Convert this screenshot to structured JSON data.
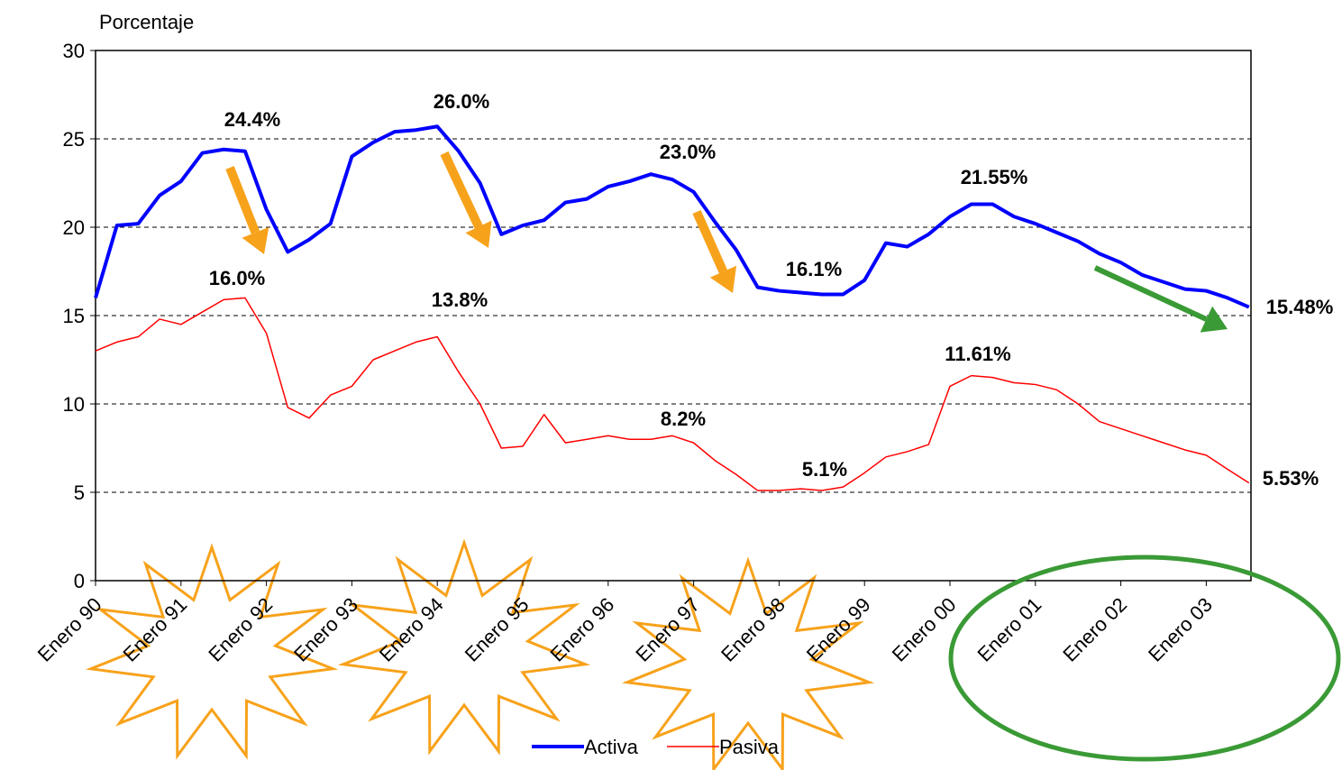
{
  "chart_data": {
    "type": "line",
    "y_label": "Porcentaje",
    "categories": [
      "Enero 90",
      null,
      null,
      null,
      "Enero 91",
      null,
      null,
      null,
      "Enero 92",
      null,
      null,
      null,
      "Enero 93",
      null,
      null,
      null,
      "Enero 94",
      null,
      null,
      null,
      "Enero 95",
      null,
      null,
      null,
      "Enero 96",
      null,
      null,
      null,
      "Enero 97",
      null,
      null,
      null,
      "Enero 98",
      null,
      null,
      null,
      "Enero 99",
      null,
      null,
      null,
      "Enero 00",
      null,
      null,
      null,
      "Enero 01",
      null,
      null,
      null,
      "Enero 02",
      null,
      null,
      null,
      "Enero 03",
      null,
      null
    ],
    "series": [
      {
        "name": "Activa",
        "color": "#0000ff",
        "values": [
          16.0,
          20.1,
          20.2,
          21.8,
          22.6,
          24.2,
          24.4,
          24.3,
          21.0,
          18.6,
          19.3,
          20.2,
          24.0,
          24.8,
          25.4,
          25.5,
          25.7,
          24.3,
          22.5,
          19.6,
          20.1,
          20.4,
          21.4,
          21.6,
          22.3,
          22.6,
          23.0,
          22.7,
          22.0,
          20.3,
          18.7,
          16.6,
          16.4,
          16.3,
          16.2,
          16.2,
          17.0,
          19.1,
          18.9,
          19.6,
          20.6,
          21.3,
          21.3,
          20.6,
          20.2,
          19.7,
          19.2,
          18.5,
          18.0,
          17.3,
          16.9,
          16.5,
          16.4,
          16.0,
          15.48
        ]
      },
      {
        "name": "Pasiva",
        "color": "#ff0000",
        "values": [
          13.0,
          13.5,
          13.8,
          14.8,
          14.5,
          15.2,
          15.9,
          16.0,
          14.0,
          9.8,
          9.2,
          10.5,
          11.0,
          12.5,
          13.0,
          13.5,
          13.8,
          11.8,
          10.0,
          7.5,
          7.6,
          9.4,
          7.8,
          8.0,
          8.2,
          8.0,
          8.0,
          8.2,
          7.8,
          6.8,
          6.0,
          5.1,
          5.1,
          5.2,
          5.1,
          5.3,
          6.1,
          7.0,
          7.3,
          7.7,
          11.0,
          11.6,
          11.5,
          11.2,
          11.1,
          10.8,
          10.0,
          9.0,
          8.6,
          8.2,
          7.8,
          7.4,
          7.1,
          6.3,
          5.53
        ]
      }
    ],
    "ylim": [
      0,
      30
    ],
    "yticks": [
      0,
      5,
      10,
      15,
      20,
      25,
      30
    ],
    "grid": true,
    "annotations": [
      "24.4%",
      "26.0%",
      "23.0%",
      "16.1%",
      "21.55%",
      "15.48%",
      "16.0%",
      "13.8%",
      "8.2%",
      "5.1%",
      "11.61%",
      "5.53%"
    ]
  }
}
